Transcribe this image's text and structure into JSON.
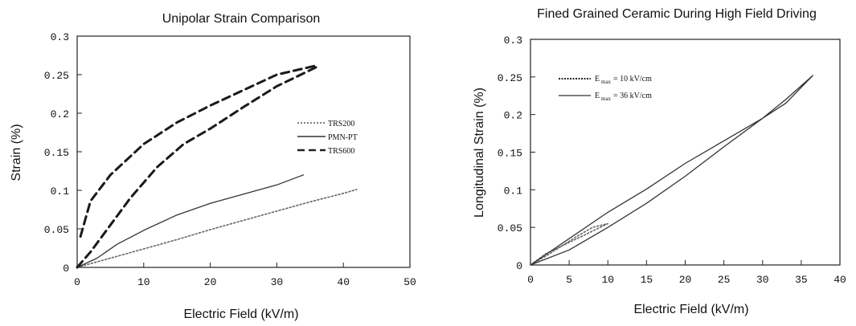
{
  "chart_data": [
    {
      "type": "line",
      "title": "Unipolar Strain Comparison",
      "xlabel": "Electric Field (kV/m)",
      "ylabel": "Strain (%)",
      "xlim": [
        0,
        50
      ],
      "ylim": [
        0,
        0.3
      ],
      "xticks": [
        "0",
        "10",
        "20",
        "30",
        "40",
        "50"
      ],
      "yticks": [
        "0",
        "0.05",
        "0.1",
        "0.15",
        "0.2",
        "0.25",
        "0.3"
      ],
      "legend": {
        "position": "right"
      },
      "series": [
        {
          "name": "TRS200",
          "style": "dotted",
          "points": [
            [
              0,
              0
            ],
            [
              5,
              0.012
            ],
            [
              10,
              0.024
            ],
            [
              15,
              0.036
            ],
            [
              20,
              0.049
            ],
            [
              25,
              0.061
            ],
            [
              30,
              0.073
            ],
            [
              35,
              0.085
            ],
            [
              40,
              0.096
            ],
            [
              42,
              0.101
            ]
          ]
        },
        {
          "name": "PMN-PT",
          "style": "solid",
          "points": [
            [
              0,
              0
            ],
            [
              3,
              0.012
            ],
            [
              6,
              0.03
            ],
            [
              10,
              0.048
            ],
            [
              15,
              0.068
            ],
            [
              20,
              0.083
            ],
            [
              25,
              0.095
            ],
            [
              30,
              0.107
            ],
            [
              34,
              0.12
            ]
          ]
        },
        {
          "name": "TRS600",
          "style": "dashed",
          "points": [
            [
              0.5,
              0.04
            ],
            [
              2,
              0.086
            ],
            [
              5,
              0.12
            ],
            [
              10,
              0.16
            ],
            [
              15,
              0.188
            ],
            [
              20,
              0.21
            ],
            [
              25,
              0.23
            ],
            [
              30,
              0.25
            ],
            [
              36,
              0.262
            ]
          ]
        },
        {
          "name": "",
          "style": "dashed",
          "points": [
            [
              0,
              0
            ],
            [
              2,
              0.02
            ],
            [
              5,
              0.055
            ],
            [
              8,
              0.09
            ],
            [
              12,
              0.13
            ],
            [
              16,
              0.16
            ],
            [
              20,
              0.18
            ],
            [
              25,
              0.208
            ],
            [
              30,
              0.235
            ],
            [
              36,
              0.26
            ]
          ]
        }
      ]
    },
    {
      "type": "line",
      "title": "Fined Grained Ceramic During High Field Driving",
      "xlabel": "Electric Field (kV/m)",
      "ylabel": "Longitudinal Strain (%)",
      "xlim": [
        0,
        40
      ],
      "ylim": [
        0,
        0.3
      ],
      "xticks": [
        "0",
        "5",
        "10",
        "15",
        "20",
        "25",
        "30",
        "35",
        "40"
      ],
      "yticks": [
        "0",
        "0.05",
        "0.1",
        "0.15",
        "0.2",
        "0.25",
        "0.3"
      ],
      "legend": {
        "position": "top-left"
      },
      "series": [
        {
          "name": "E max = 10 kV/cm",
          "legend_main": "E",
          "legend_sub": "max",
          "legend_rest": "= 10 kV/cm",
          "style": "dotted",
          "points": [
            [
              0,
              0
            ],
            [
              2,
              0.015
            ],
            [
              4,
              0.025
            ],
            [
              6,
              0.035
            ],
            [
              8,
              0.045
            ],
            [
              10,
              0.055
            ],
            [
              8,
              0.05
            ],
            [
              6,
              0.038
            ],
            [
              4,
              0.025
            ],
            [
              2,
              0.012
            ],
            [
              0,
              0
            ]
          ]
        },
        {
          "name": "E max = 36 kV/cm",
          "legend_main": "E",
          "legend_sub": "max",
          "legend_rest": "= 36 kV/cm",
          "style": "solid",
          "points": [
            [
              0,
              0
            ],
            [
              5,
              0.035
            ],
            [
              10,
              0.07
            ],
            [
              15,
              0.101
            ],
            [
              20,
              0.135
            ],
            [
              25,
              0.165
            ],
            [
              30,
              0.195
            ],
            [
              33,
              0.215
            ],
            [
              36.5,
              0.252
            ],
            [
              33,
              0.22
            ],
            [
              30,
              0.195
            ],
            [
              25,
              0.157
            ],
            [
              20,
              0.118
            ],
            [
              15,
              0.082
            ],
            [
              10,
              0.05
            ],
            [
              5,
              0.02
            ],
            [
              0,
              0
            ]
          ]
        }
      ]
    }
  ]
}
